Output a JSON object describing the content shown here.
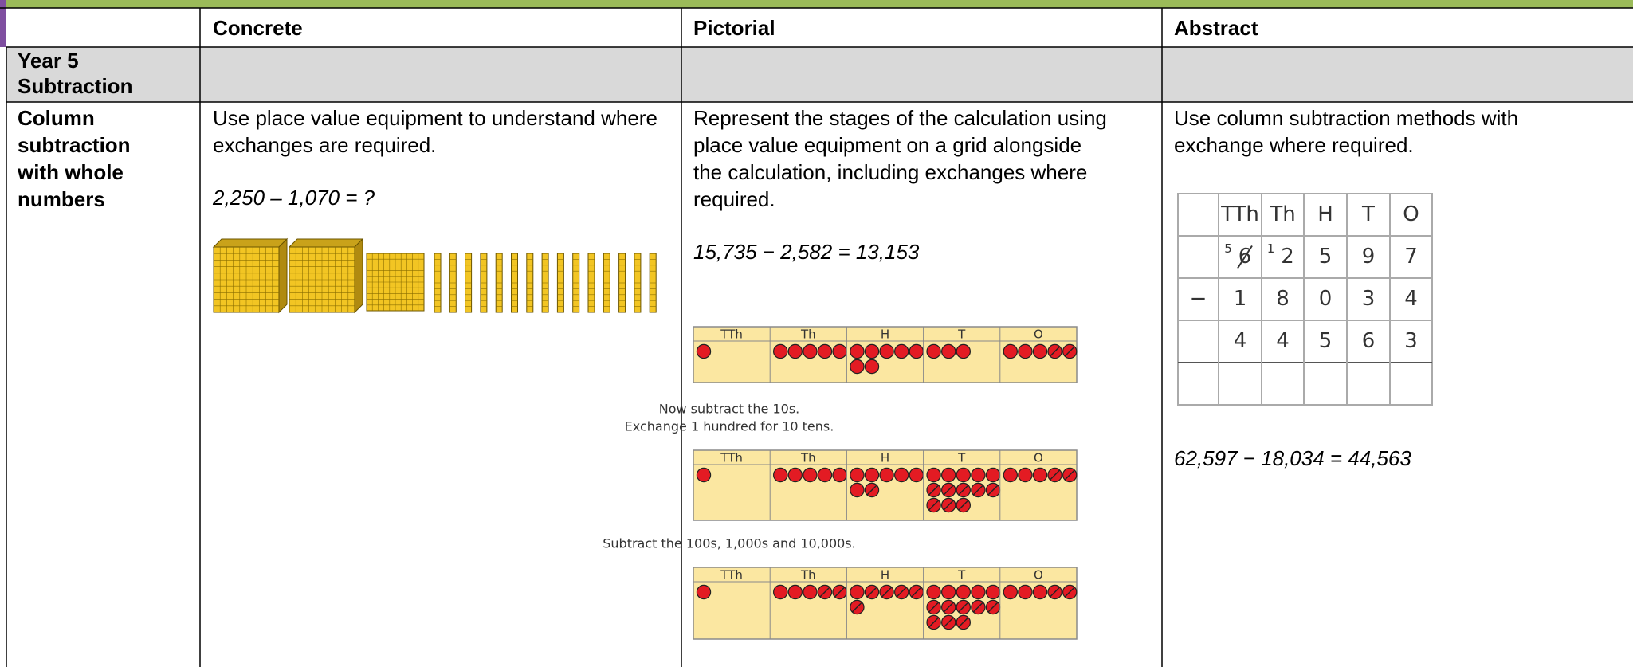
{
  "header": {
    "columns": [
      "Concrete",
      "Pictorial",
      "Abstract"
    ]
  },
  "section": "Year 5 Subtraction",
  "row": {
    "label": "Column subtraction with whole numbers",
    "concrete": {
      "text": "Use place value equipment to understand where exchanges are required.",
      "equation": "2,250 – 1,070 = ?"
    },
    "pictorial": {
      "text": "Represent the stages of the calculation using place value equipment on a grid alongside the calculation, including exchanges where required.",
      "equation": "15,735 − 2,582 = 13,153",
      "charts": [
        {
          "headers": [
            "TTh",
            "Th",
            "H",
            "T",
            "O"
          ]
        },
        {
          "headers": [
            "TTh",
            "Th",
            "H",
            "T",
            "O"
          ]
        },
        {
          "headers": [
            "TTh",
            "Th",
            "H",
            "T",
            "O"
          ]
        }
      ],
      "captions": [
        [
          "Now subtract the 10s.",
          "Exchange 1 hundred for 10 tens."
        ],
        [
          "Subtract the 100s, 1,000s and 10,000s."
        ]
      ]
    },
    "abstract": {
      "text": "Use column subtraction methods with exchange where required.",
      "grid": {
        "header": [
          "TTh",
          "Th",
          "H",
          "T",
          "O"
        ],
        "exchanges": [
          null,
          "5",
          "1",
          null,
          null,
          null
        ],
        "rows": [
          [
            null,
            "6",
            "2",
            "5",
            "9",
            "7"
          ],
          [
            "−",
            "1",
            "8",
            "0",
            "3",
            "4"
          ],
          [
            null,
            "4",
            "4",
            "5",
            "6",
            "3"
          ],
          [
            null,
            null,
            null,
            null,
            null,
            null
          ]
        ]
      },
      "equation": "62,597 − 18,034 = 44,563"
    }
  }
}
